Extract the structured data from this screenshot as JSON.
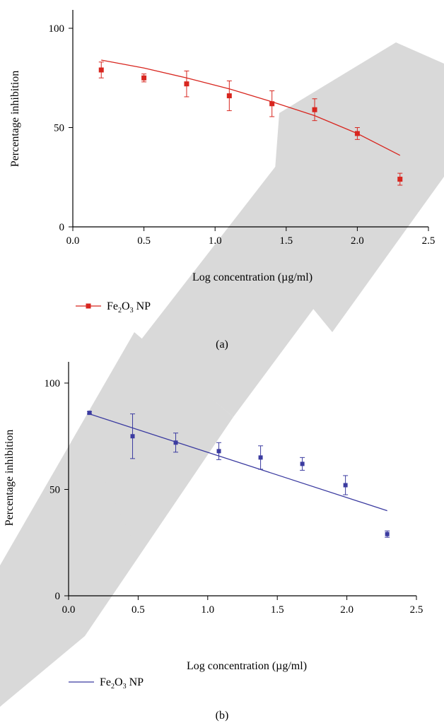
{
  "chart_data": [
    {
      "type": "scatter",
      "panel_label": "(a)",
      "xlabel": "Log concentration (µg/ml)",
      "ylabel": "Percentage inhibition",
      "xlim": [
        0,
        2.5
      ],
      "ylim": [
        0,
        100
      ],
      "xticks": [
        "0.0",
        "0.5",
        "1.0",
        "1.5",
        "2.0",
        "2.5"
      ],
      "yticks": [
        "0",
        "50",
        "100"
      ],
      "grid": false,
      "legend_position": "bottom-left",
      "color": "#d8261f",
      "series": [
        {
          "name": "Fe2O3 NP",
          "legend_parts": [
            "Fe",
            "2",
            "O",
            "3",
            " NP"
          ],
          "x": [
            0.2,
            0.5,
            0.8,
            1.1,
            1.4,
            1.7,
            2.0,
            2.3
          ],
          "y": [
            79,
            75,
            72,
            66,
            62,
            59,
            47,
            24
          ],
          "err": [
            4,
            2,
            6.5,
            7.5,
            6.5,
            5.5,
            3,
            3
          ],
          "fit_x": [
            0.2,
            0.5,
            0.8,
            1.1,
            1.4,
            1.7,
            2.0,
            2.3
          ],
          "fit_y": [
            84,
            80,
            75,
            69.5,
            63,
            56,
            47,
            36
          ]
        }
      ]
    },
    {
      "type": "scatter",
      "panel_label": "(b)",
      "xlabel": "Log concentration (µg/ml)",
      "ylabel": "Percentage inhibition",
      "xlim": [
        0,
        2.5
      ],
      "ylim": [
        0,
        100
      ],
      "xticks": [
        "0.0",
        "0.5",
        "1.0",
        "1.5",
        "2.0",
        "2.5"
      ],
      "yticks": [
        "0",
        "50",
        "100"
      ],
      "grid": false,
      "legend_position": "bottom-left",
      "color": "#3b3ba0",
      "series": [
        {
          "name": "Fe2O3 NP",
          "legend_parts": [
            "Fe",
            "2",
            "O",
            "3",
            " NP"
          ],
          "x": [
            0.15,
            0.46,
            0.77,
            1.08,
            1.38,
            1.68,
            1.99,
            2.29
          ],
          "y": [
            86,
            75,
            72,
            68,
            65,
            62,
            52,
            29
          ],
          "err": [
            0.5,
            10.5,
            4.5,
            4,
            5.5,
            3,
            4.5,
            1.5
          ],
          "fit_x": [
            0.15,
            2.29
          ],
          "fit_y": [
            85.5,
            40
          ]
        }
      ]
    }
  ]
}
